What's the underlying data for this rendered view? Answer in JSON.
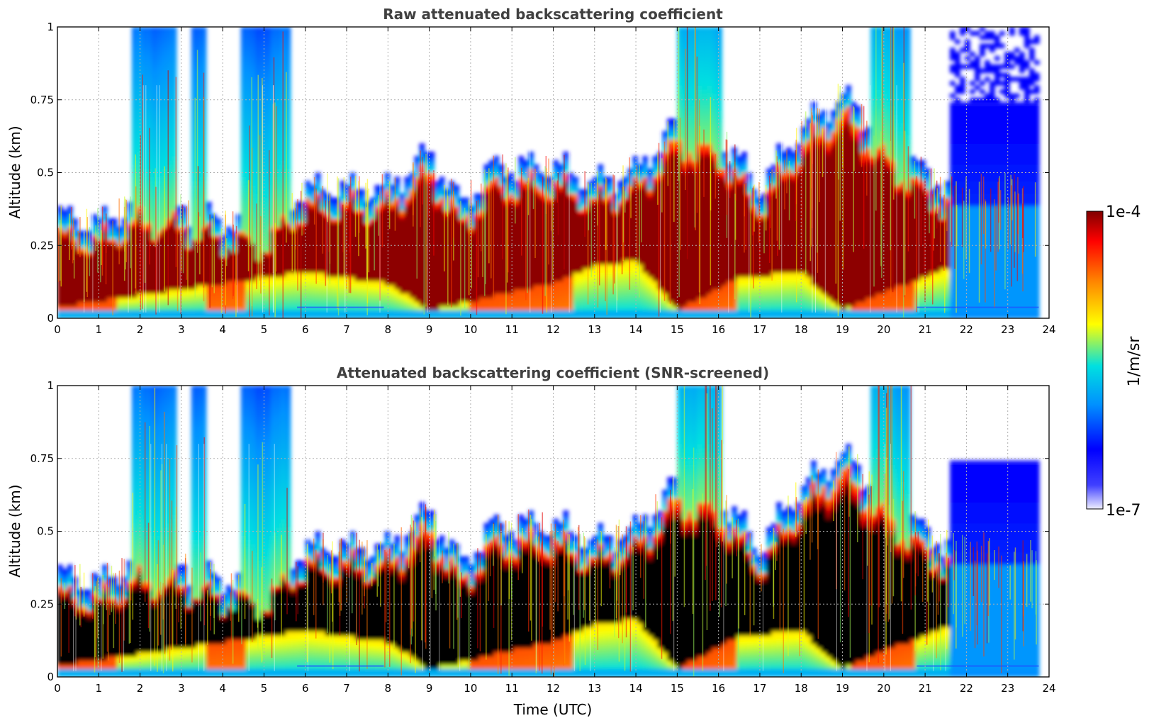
{
  "chart_data": [
    {
      "type": "heatmap",
      "title": "Raw attenuated backscattering coefficient",
      "xlabel": "",
      "ylabel": "Altitude (km)",
      "xlim": [
        0,
        24
      ],
      "ylim": [
        0,
        1
      ],
      "xticks": [
        "0",
        "1",
        "2",
        "3",
        "4",
        "5",
        "6",
        "7",
        "8",
        "9",
        "10",
        "11",
        "12",
        "13",
        "14",
        "15",
        "16",
        "17",
        "18",
        "19",
        "20",
        "21",
        "22",
        "23",
        "24"
      ],
      "yticks": [
        "0",
        "0.25",
        "0.5",
        "0.75",
        "1"
      ],
      "grid": true,
      "layer_top_km": [
        {
          "t": 0.0,
          "z": 0.28
        },
        {
          "t": 1.0,
          "z": 0.26
        },
        {
          "t": 2.0,
          "z": 0.33
        },
        {
          "t": 3.0,
          "z": 0.31
        },
        {
          "t": 4.0,
          "z": 0.27
        },
        {
          "t": 5.0,
          "z": 0.25
        },
        {
          "t": 6.0,
          "z": 0.38
        },
        {
          "t": 8.0,
          "z": 0.38
        },
        {
          "t": 9.0,
          "z": 0.5
        },
        {
          "t": 9.8,
          "z": 0.32
        },
        {
          "t": 10.5,
          "z": 0.45
        },
        {
          "t": 12.0,
          "z": 0.46
        },
        {
          "t": 13.0,
          "z": 0.4
        },
        {
          "t": 14.0,
          "z": 0.44
        },
        {
          "t": 15.0,
          "z": 0.6
        },
        {
          "t": 16.0,
          "z": 0.56
        },
        {
          "t": 17.0,
          "z": 0.38
        },
        {
          "t": 18.0,
          "z": 0.58
        },
        {
          "t": 19.0,
          "z": 0.7
        },
        {
          "t": 20.0,
          "z": 0.55
        },
        {
          "t": 21.0,
          "z": 0.43
        },
        {
          "t": 21.6,
          "z": 0.38
        }
      ],
      "layer_base_km": [
        {
          "t": 0.0,
          "z": 0.04
        },
        {
          "t": 6.0,
          "z": 0.16
        },
        {
          "t": 8.0,
          "z": 0.12
        },
        {
          "t": 9.0,
          "z": 0.03
        },
        {
          "t": 12.0,
          "z": 0.12
        },
        {
          "t": 13.0,
          "z": 0.18
        },
        {
          "t": 14.0,
          "z": 0.2
        },
        {
          "t": 15.0,
          "z": 0.03
        },
        {
          "t": 16.5,
          "z": 0.14
        },
        {
          "t": 18.0,
          "z": 0.16
        },
        {
          "t": 19.0,
          "z": 0.03
        },
        {
          "t": 21.6,
          "z": 0.18
        }
      ],
      "noisy_background_from_utc": 21.6,
      "data_end_utc": 23.75
    },
    {
      "type": "heatmap",
      "title": "Attenuated backscattering coefficient (SNR-screened)",
      "xlabel": "Time (UTC)",
      "ylabel": "Altitude (km)",
      "xlim": [
        0,
        24
      ],
      "ylim": [
        0,
        1
      ],
      "xticks": [
        "0",
        "1",
        "2",
        "3",
        "4",
        "5",
        "6",
        "7",
        "8",
        "9",
        "10",
        "11",
        "12",
        "13",
        "14",
        "15",
        "16",
        "17",
        "18",
        "19",
        "20",
        "21",
        "22",
        "23",
        "24"
      ],
      "yticks": [
        "0",
        "0.25",
        "0.5",
        "0.75",
        "1"
      ],
      "grid": true,
      "screened_region_top_km": 0.75,
      "screened_region_from_utc": 21.6,
      "data_end_utc": 23.75
    }
  ],
  "colorbar": {
    "label": "1/m/sr",
    "max_label": "1e-4",
    "min_label": "1e-7",
    "scale": "log",
    "range": [
      1e-07,
      0.0001
    ],
    "colormap": [
      "#eeeeff",
      "#0000ff",
      "#0080ff",
      "#00e0e0",
      "#ffff00",
      "#ff8000",
      "#ff0000",
      "#800000"
    ]
  }
}
